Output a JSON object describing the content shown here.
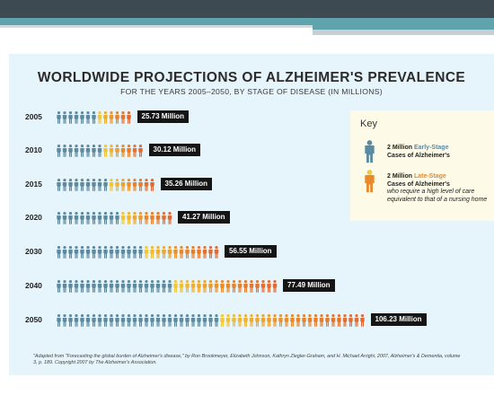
{
  "chart_data": {
    "type": "bar",
    "title": "WORLDWIDE PROJECTIONS OF ALZHEIMER'S PREVALENCE",
    "subtitle": "FOR THE YEARS 2005–2050, BY STAGE OF DISEASE (IN MILLIONS)",
    "categories": [
      "2005",
      "2010",
      "2015",
      "2020",
      "2030",
      "2040",
      "2050"
    ],
    "totals": [
      25.73,
      30.12,
      35.26,
      41.27,
      56.55,
      77.49,
      106.23
    ],
    "value_labels": [
      "25.73 Million",
      "30.12 Million",
      "35.26 Million",
      "41.27 Million",
      "56.55 Million",
      "77.49 Million",
      "106.23 Million"
    ],
    "unit_per_icon": 2,
    "series": [
      {
        "name": "Early-Stage",
        "color": "#5e8aa0",
        "icon_counts": [
          7,
          8,
          9,
          11,
          15,
          20,
          28
        ]
      },
      {
        "name": "Late-Stage",
        "color_gradient": [
          "#f0c63a",
          "#e8892b",
          "#df6a35"
        ],
        "icon_counts": [
          6,
          7,
          8,
          9,
          13,
          18,
          25
        ]
      }
    ],
    "legend_position": "right",
    "key": {
      "title": "Key",
      "early": {
        "amount": "2 Million",
        "stage": "Early-Stage",
        "tail": "Cases of Alzheimer's"
      },
      "late": {
        "amount": "2 Million",
        "stage": "Late-Stage",
        "tail": "Cases of Alzheimer's",
        "note": "who require a high level of care equivalent to that of a nursing home"
      }
    },
    "source": "\"Adapted from \"Forecasting the global burden of Alzheimer's disease,\" by Ron Brookmeyer, Elizabeth Johnson, Kathryn Ziegler-Graham, and H. Michael Arrighi, 2007, Alzheimer's & Dementia, volume 3, p. 189. Copyright 2007 by The Alzheimer's Association."
  },
  "colors": {
    "early_stage": "#5e8aa0",
    "late_stage_yellow": "#f0c63a",
    "late_stage_orange": "#e8892b",
    "late_stage_red": "#df6a35",
    "value_label_bg": "#151515",
    "panel_bg": "#e6f4fb",
    "key_bg": "#fdfbe8"
  }
}
